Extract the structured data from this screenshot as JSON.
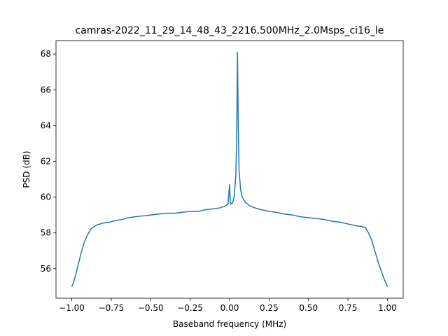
{
  "chart_data": {
    "type": "line",
    "title": "camras-2022_11_29_14_48_43_2216.500MHz_2.0Msps_ci16_le",
    "x_label": "Baseband frequency (MHz)",
    "y_label": "PSD (dB)",
    "xlim": [
      -1.1,
      1.1
    ],
    "ylim": [
      54.35,
      68.75
    ],
    "xticks": [
      {
        "value": -1,
        "label": "−1.00"
      },
      {
        "value": -0.75,
        "label": "−0.75"
      },
      {
        "value": -0.5,
        "label": "−0.50"
      },
      {
        "value": -0.25,
        "label": "−0.25"
      },
      {
        "value": 0,
        "label": "0.00"
      },
      {
        "value": 0.25,
        "label": "0.25"
      },
      {
        "value": 0.5,
        "label": "0.50"
      },
      {
        "value": 0.75,
        "label": "0.75"
      },
      {
        "value": 1,
        "label": "1.00"
      }
    ],
    "yticks": [
      56,
      58,
      60,
      62,
      64,
      66,
      68
    ],
    "grid": false,
    "series": [
      {
        "color": "#1f77b4",
        "x": [
          -1.0,
          -0.99,
          -0.98,
          -0.96,
          -0.94,
          -0.92,
          -0.9,
          -0.88,
          -0.86,
          -0.84,
          -0.8,
          -0.76,
          -0.72,
          -0.68,
          -0.64,
          -0.6,
          -0.55,
          -0.5,
          -0.45,
          -0.4,
          -0.35,
          -0.3,
          -0.25,
          -0.2,
          -0.15,
          -0.1,
          -0.06,
          -0.03,
          -0.01,
          0,
          0.005,
          0.02,
          0.03,
          0.04,
          0.045,
          0.05,
          0.055,
          0.06,
          0.07,
          0.08,
          0.1,
          0.13,
          0.16,
          0.2,
          0.25,
          0.3,
          0.35,
          0.4,
          0.45,
          0.5,
          0.55,
          0.6,
          0.65,
          0.7,
          0.75,
          0.8,
          0.84,
          0.86,
          0.88,
          0.9,
          0.92,
          0.94,
          0.96,
          0.98,
          0.99,
          1.0
        ],
        "values": [
          55.0,
          55.2,
          55.5,
          56.2,
          56.9,
          57.5,
          57.9,
          58.2,
          58.35,
          58.45,
          58.55,
          58.6,
          58.7,
          58.75,
          58.85,
          58.9,
          58.95,
          59.0,
          59.05,
          59.1,
          59.1,
          59.15,
          59.2,
          59.2,
          59.3,
          59.35,
          59.4,
          59.5,
          59.6,
          60.7,
          59.6,
          59.7,
          60.1,
          61.3,
          63.5,
          68.1,
          63.8,
          61.5,
          60.4,
          60.0,
          59.7,
          59.5,
          59.4,
          59.3,
          59.2,
          59.15,
          59.05,
          59.0,
          58.9,
          58.85,
          58.8,
          58.75,
          58.65,
          58.6,
          58.5,
          58.4,
          58.35,
          58.3,
          58.0,
          57.6,
          57.0,
          56.4,
          55.9,
          55.4,
          55.2,
          55.0
        ]
      }
    ]
  }
}
